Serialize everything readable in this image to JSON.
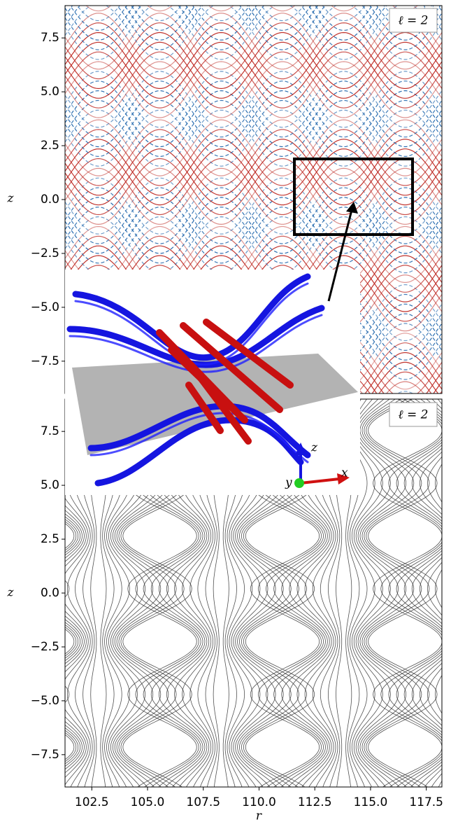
{
  "chart_data": [
    {
      "type": "contour",
      "ylabel": "z",
      "annotation": "ℓ = 2",
      "xlim": [
        101.3,
        118.2
      ],
      "ylim": [
        -9,
        9
      ],
      "yticks": [
        7.5,
        {
          "value": 5,
          "label": "5.0"
        },
        2.5,
        {
          "value": 0,
          "label": "0.0"
        },
        {
          "value": -2.5,
          "label": "−2.5"
        },
        {
          "value": -5,
          "label": "−5.0"
        },
        {
          "value": -7.5,
          "label": "−7.5"
        }
      ],
      "colors": {
        "positive": "#c0302a",
        "negative": "#2a6db0"
      },
      "inset_axes": [
        "z",
        "x",
        "y"
      ]
    },
    {
      "type": "streamline",
      "ylabel": "z",
      "xlabel": "r",
      "annotation": "ℓ = 2",
      "xlim": [
        101.3,
        118.2
      ],
      "ylim": [
        -9,
        9
      ],
      "yticks": [
        7.5,
        {
          "value": 5,
          "label": "5.0"
        },
        2.5,
        {
          "value": 0,
          "label": "0.0"
        },
        {
          "value": -2.5,
          "label": "−2.5"
        },
        {
          "value": -5,
          "label": "−5.0"
        },
        {
          "value": -7.5,
          "label": "−7.5"
        }
      ],
      "xticks": [
        102.5,
        {
          "value": 105,
          "label": "105.0"
        },
        107.5,
        {
          "value": 110,
          "label": "110.0"
        },
        112.5,
        {
          "value": 115,
          "label": "115.0"
        },
        117.5
      ],
      "color": "#333333"
    }
  ]
}
